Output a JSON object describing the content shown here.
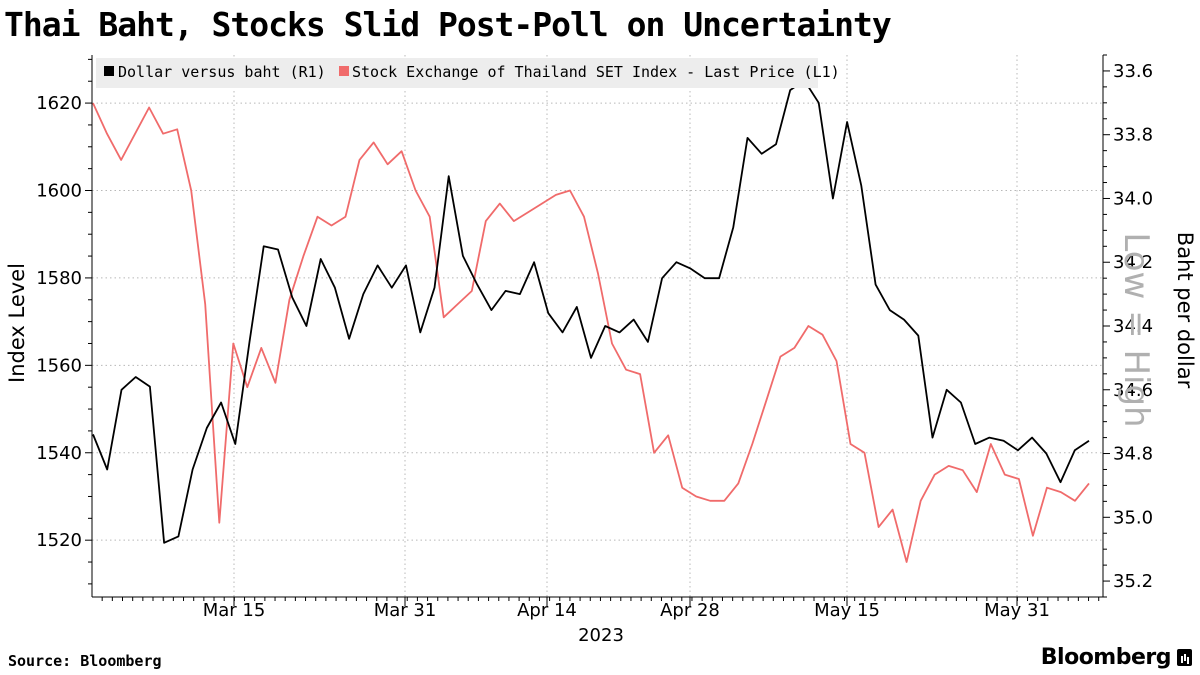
{
  "header": {
    "title": "Thai Baht, Stocks Slid Post-Poll on Uncertainty"
  },
  "footer": {
    "source": "Source: Bloomberg",
    "brand": "Bloomberg"
  },
  "chart_data": {
    "type": "line",
    "title": "Thai Baht, Stocks Slid Post-Poll on Uncertainty",
    "x_year_label": "2023",
    "x_ticks": [
      "Mar 15",
      "Mar 31",
      "Apr 14",
      "Apr 28",
      "May 15",
      "May 31"
    ],
    "y_left": {
      "label": "Index Level",
      "range": [
        1507,
        1631
      ],
      "ticks": [
        "1520",
        "1540",
        "1560",
        "1580",
        "1600",
        "1620"
      ]
    },
    "y_right": {
      "label": "Baht per dollar",
      "range_top": 33.55,
      "range_bottom": 35.25,
      "inverted": true,
      "ticks": [
        "33.6",
        "33.8",
        "34.0",
        "34.2",
        "34.4",
        "34.6",
        "34.8",
        "35.0",
        "35.2"
      ],
      "overlay_text": "Low = High"
    },
    "legend_position": "top-left",
    "grid": true,
    "colors": {
      "usd_thb": "#000000",
      "set_index": "#f06b6b",
      "axis": "#000000",
      "grid": "#b8b8b8",
      "legend_bg": "#ededed"
    },
    "series": [
      {
        "name": "Dollar versus baht (R1)",
        "axis": "right",
        "values": [
          34.74,
          34.85,
          34.6,
          34.56,
          34.59,
          35.08,
          35.06,
          34.85,
          34.72,
          34.64,
          34.77,
          34.45,
          34.15,
          34.16,
          34.31,
          34.4,
          34.19,
          34.28,
          34.44,
          34.3,
          34.21,
          34.28,
          34.21,
          34.42,
          34.28,
          33.93,
          34.18,
          34.27,
          34.35,
          34.29,
          34.3,
          34.2,
          34.36,
          34.42,
          34.34,
          34.5,
          34.4,
          34.42,
          34.38,
          34.45,
          34.25,
          34.2,
          34.22,
          34.25,
          34.25,
          34.09,
          33.81,
          33.86,
          33.83,
          33.66,
          33.63,
          33.7,
          34.0,
          33.76,
          33.96,
          34.27,
          34.35,
          34.38,
          34.43,
          34.75,
          34.6,
          34.64,
          34.77,
          34.75,
          34.76,
          34.79,
          34.75,
          34.8,
          34.89,
          34.79,
          34.76
        ]
      },
      {
        "name": "Stock Exchange of Thailand SET Index - Last Price (L1)",
        "axis": "left",
        "values": [
          1620,
          1613,
          1607,
          1613,
          1619,
          1613,
          1614,
          1600,
          1574,
          1524,
          1565,
          1555,
          1564,
          1556,
          1575,
          1585,
          1594,
          1592,
          1594,
          1607,
          1611,
          1606,
          1609,
          1600,
          1594,
          1571,
          1574,
          1577,
          1593,
          1597,
          1593,
          1595,
          1597,
          1599,
          1600,
          1594,
          1581,
          1565,
          1559,
          1558,
          1540,
          1544,
          1532,
          1530,
          1529,
          1529,
          1533,
          1542,
          1552,
          1562,
          1564,
          1569,
          1567,
          1561,
          1542,
          1540,
          1523,
          1527,
          1515,
          1529,
          1535,
          1537,
          1536,
          1531,
          1542,
          1535,
          1534,
          1521,
          1532,
          1531,
          1529,
          1533
        ]
      }
    ]
  }
}
